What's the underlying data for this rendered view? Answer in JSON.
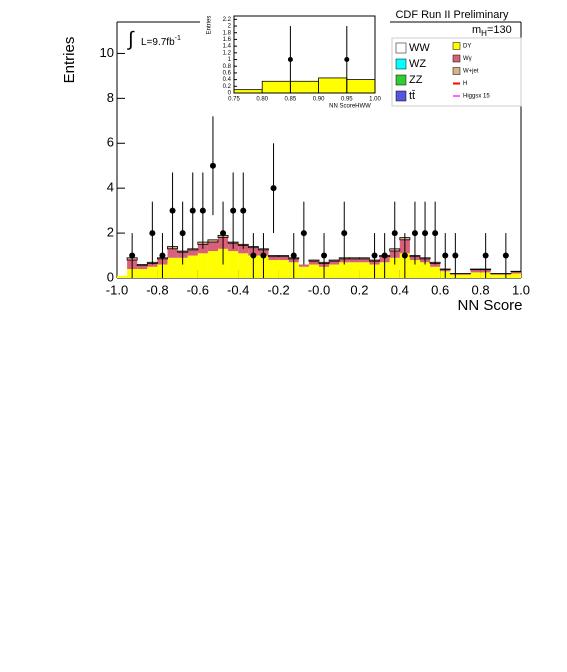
{
  "chart_data": [
    {
      "type": "stacked_histogram",
      "title": "CDF Run II Preliminary",
      "mass_label": {
        "symbol": "m",
        "subscript": "H",
        "text": "=130"
      },
      "lumi_label": {
        "text": "L=9.7fb",
        "superscript": "-1"
      },
      "x_label": "NN Score",
      "y_label": "Entries",
      "xlim": [
        -1,
        1
      ],
      "ylim": [
        0,
        11.4
      ],
      "xticks": [
        {
          "value": -1,
          "label": "-1.0"
        },
        -0.8,
        -0.6,
        -0.4,
        -0.2,
        {
          "value": 0,
          "label": "-0.0"
        },
        0.2,
        0.4,
        0.6,
        0.8,
        {
          "value": 1,
          "label": "1.0"
        }
      ],
      "yticks": [
        0,
        2,
        4,
        6,
        8,
        10
      ],
      "bins": [
        -1,
        -0.95,
        -0.9,
        -0.85,
        -0.8,
        -0.75,
        -0.7,
        -0.65,
        -0.6,
        -0.55,
        -0.5,
        -0.45,
        -0.4,
        -0.35,
        -0.3,
        -0.25,
        -0.2,
        -0.15,
        -0.1,
        -0.05,
        0,
        0.05,
        0.1,
        0.15,
        0.2,
        0.25,
        0.3,
        0.35,
        0.4,
        0.45,
        0.5,
        0.55,
        0.6,
        0.65,
        0.7,
        0.75,
        0.8,
        0.85,
        0.9,
        0.95,
        1
      ],
      "series": [
        {
          "name": "DY",
          "color": "#ffff00",
          "values": [
            0.1,
            0.4,
            0.4,
            0.5,
            0.6,
            0.9,
            0.9,
            1.0,
            1.1,
            1.2,
            1.3,
            1.2,
            1.1,
            1.0,
            1.0,
            0.8,
            0.8,
            0.7,
            0.5,
            0.6,
            0.5,
            0.6,
            0.7,
            0.7,
            0.7,
            0.6,
            0.7,
            0.9,
            1.1,
            0.8,
            0.7,
            0.5,
            0.3,
            0.15,
            0.15,
            0.25,
            0.25,
            0.15,
            0.15,
            0.2
          ]
        },
        {
          "name": "Wγ",
          "color": "#d9607a",
          "values": [
            0,
            0.4,
            0.15,
            0.15,
            0.25,
            0.4,
            0.25,
            0.25,
            0.4,
            0.4,
            0.5,
            0.35,
            0.35,
            0.35,
            0.25,
            0.15,
            0.15,
            0.15,
            0.1,
            0.15,
            0.15,
            0.15,
            0.15,
            0.15,
            0.15,
            0.15,
            0.25,
            0.3,
            0.6,
            0.15,
            0.15,
            0.15,
            0.08,
            0.04,
            0.04,
            0.12,
            0.12,
            0.04,
            0.04,
            0.08
          ]
        },
        {
          "name": "W+jet",
          "color": "#d9b08c",
          "values": [
            0,
            0.1,
            0.05,
            0.05,
            0.05,
            0.1,
            0.05,
            0.05,
            0.1,
            0.1,
            0.1,
            0.05,
            0.05,
            0.05,
            0.05,
            0.05,
            0.05,
            0.05,
            0,
            0.05,
            0.05,
            0.05,
            0.05,
            0.05,
            0.05,
            0.05,
            0.05,
            0.1,
            0.1,
            0.05,
            0.05,
            0.05,
            0.02,
            0.01,
            0.01,
            0.03,
            0.03,
            0.01,
            0.01,
            0.02
          ]
        }
      ],
      "data": {
        "x": [
          -0.925,
          -0.825,
          -0.775,
          -0.725,
          -0.675,
          -0.625,
          -0.575,
          -0.525,
          -0.475,
          -0.425,
          -0.375,
          -0.325,
          -0.275,
          -0.225,
          -0.125,
          -0.075,
          0.025,
          0.125,
          0.275,
          0.325,
          0.375,
          0.425,
          0.475,
          0.525,
          0.575,
          0.625,
          0.675,
          0.825,
          0.925
        ],
        "y": [
          1,
          2,
          1,
          3,
          2,
          3,
          3,
          5,
          2,
          3,
          3,
          1,
          1,
          4,
          1,
          2,
          1,
          2,
          1,
          1,
          2,
          1,
          2,
          2,
          2,
          1,
          1,
          1,
          1
        ],
        "errors": [
          1,
          1.4,
          1,
          1.7,
          1.4,
          1.7,
          1.7,
          2.2,
          1.4,
          1.7,
          1.7,
          1,
          1,
          2,
          1,
          1.4,
          1,
          1.4,
          1,
          1,
          1.4,
          1,
          1.4,
          1.4,
          1.4,
          1,
          1,
          1,
          1
        ]
      },
      "legend": [
        {
          "name": "WW",
          "color": "#ffffff"
        },
        {
          "name": "WZ",
          "color": "#00ffff"
        },
        {
          "name": "ZZ",
          "color": "#33cc33"
        },
        {
          "name": "tt̄",
          "color": "#5555dd"
        },
        {
          "name": "DY",
          "color": "#ffff00"
        },
        {
          "name": "Wγ",
          "color": "#d9607a"
        },
        {
          "name": "W+jet",
          "color": "#d9b08c"
        },
        {
          "name": "H",
          "color": "#ff0000"
        },
        {
          "name": "Higgsx 15",
          "color": "#ff66ff"
        }
      ]
    },
    {
      "type": "histogram",
      "x_label": "NN ScoreHWW",
      "y_label": "Entries",
      "xlim": [
        0.75,
        1.0
      ],
      "ylim": [
        0,
        2.3
      ],
      "xticks": [
        0.75,
        {
          "value": 0.8,
          "label": "0.80"
        },
        0.85,
        {
          "value": 0.9,
          "label": "0.90"
        },
        0.95,
        {
          "value": 1.0,
          "label": "1.00"
        }
      ],
      "yticks": [
        0,
        0.2,
        0.4,
        0.6,
        0.8,
        1,
        1.2,
        1.4,
        1.6,
        1.8,
        2,
        2.2
      ],
      "bins": [
        0.75,
        0.8,
        0.85,
        0.9,
        0.95,
        1.0
      ],
      "values": [
        0.1,
        0.35,
        0.35,
        0.45,
        0.4
      ],
      "color": "#ffff00",
      "data": {
        "x": [
          0.85,
          0.95
        ],
        "y": [
          1,
          1
        ],
        "errors": [
          1,
          1
        ]
      }
    }
  ]
}
